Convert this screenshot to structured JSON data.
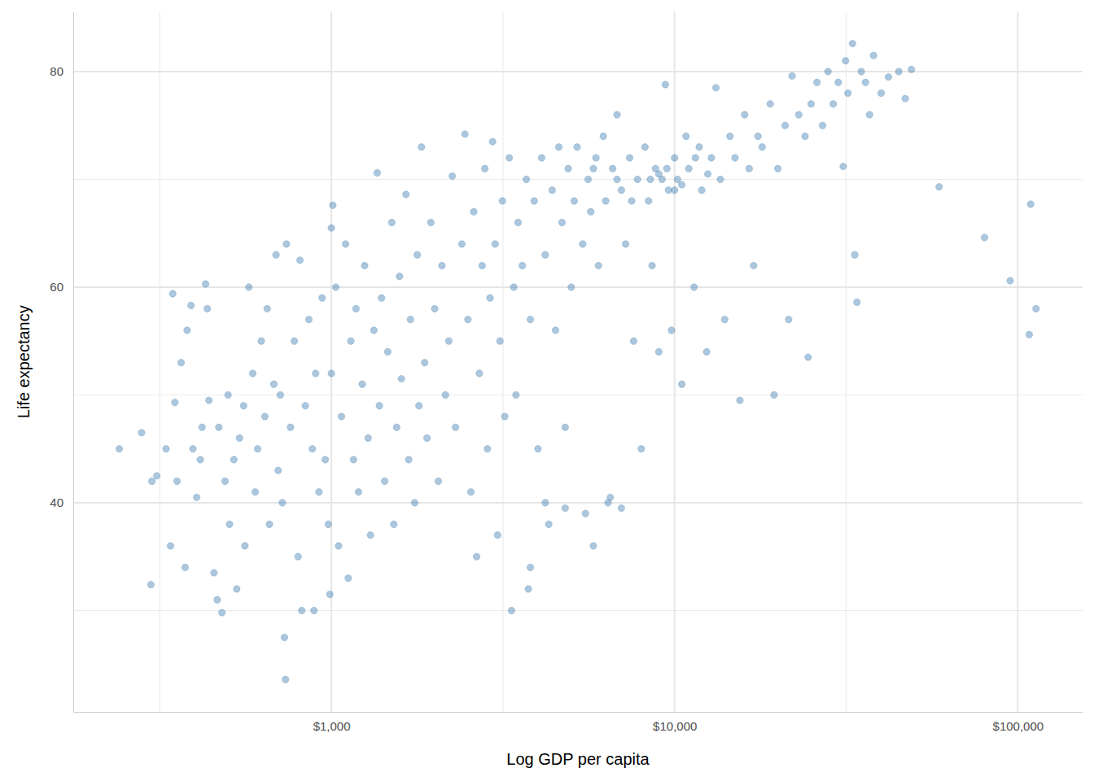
{
  "chart_data": {
    "type": "scatter",
    "x_label": "Log GDP per capita",
    "y_label": "Life expectancy",
    "color": "steelblue",
    "marker": "circle",
    "log": "x",
    "grid": true,
    "xlim": [
      177,
      154500
    ],
    "ylim": [
      20.6,
      85.55
    ],
    "xticks": [
      {
        "value": 1000,
        "label": "$1,000"
      },
      {
        "value": 10000,
        "label": "$10,000"
      },
      {
        "value": 100000,
        "label": "$100,000"
      }
    ],
    "yticks": [
      40,
      60,
      80
    ],
    "x": [
      241,
      280,
      298,
      300,
      310,
      330,
      340,
      345,
      350,
      355,
      365,
      375,
      380,
      390,
      395,
      405,
      415,
      420,
      430,
      435,
      440,
      455,
      465,
      470,
      480,
      490,
      500,
      505,
      520,
      530,
      540,
      555,
      560,
      575,
      590,
      600,
      610,
      625,
      640,
      650,
      660,
      680,
      690,
      700,
      710,
      720,
      730,
      735,
      740,
      760,
      780,
      800,
      810,
      820,
      840,
      860,
      880,
      890,
      900,
      920,
      940,
      960,
      980,
      1000,
      1000,
      990,
      1010,
      1030,
      1050,
      1070,
      1100,
      1120,
      1140,
      1160,
      1180,
      1200,
      1230,
      1250,
      1280,
      1300,
      1330,
      1360,
      1380,
      1400,
      1430,
      1460,
      1500,
      1520,
      1550,
      1580,
      1600,
      1650,
      1680,
      1700,
      1750,
      1780,
      1800,
      1830,
      1870,
      1900,
      1950,
      2000,
      2050,
      2100,
      2150,
      2200,
      2250,
      2300,
      2400,
      2450,
      2500,
      2550,
      2600,
      2650,
      2700,
      2750,
      2800,
      2850,
      2900,
      2950,
      3000,
      3050,
      3100,
      3150,
      3200,
      3300,
      3350,
      3400,
      3450,
      3500,
      3600,
      3700,
      3750,
      3800,
      3900,
      4000,
      4100,
      4200,
      4300,
      4400,
      4500,
      4600,
      4700,
      4800,
      4900,
      5000,
      5100,
      5200,
      5400,
      5500,
      5600,
      5700,
      5800,
      5900,
      6000,
      6200,
      6300,
      6400,
      6600,
      6800,
      7000,
      7200,
      7400,
      7600,
      7800,
      8000,
      8200,
      8400,
      8600,
      8800,
      9000,
      9200,
      9400,
      9600,
      9800,
      10000,
      10200,
      10500,
      10800,
      11000,
      11400,
      11800,
      12000,
      12400,
      12800,
      13200,
      13600,
      14000,
      14500,
      15000,
      15500,
      16000,
      16500,
      17000,
      17500,
      18000,
      19000,
      19500,
      20000,
      21000,
      21500,
      22000,
      23000,
      24000,
      24500,
      25000,
      26000,
      27000,
      28000,
      29000,
      30000,
      31000,
      31500,
      32000,
      33000,
      33500,
      34000,
      35000,
      36000,
      37000,
      38000,
      40000,
      42000,
      45000,
      47000,
      49000,
      59000,
      80000,
      95000,
      108000,
      109000,
      113000,
      3800,
      4200,
      4800,
      6500,
      7000,
      8500,
      9500,
      10500,
      11500,
      12500,
      7500,
      6800,
      5800,
      9000,
      10000
    ],
    "values": [
      45.0,
      46.5,
      32.4,
      42,
      42.5,
      45,
      36,
      59.4,
      49.3,
      42,
      53,
      34,
      56,
      58.3,
      45,
      40.5,
      44,
      47,
      60.3,
      58,
      49.5,
      33.5,
      31,
      47,
      29.8,
      42,
      50,
      38,
      44,
      32,
      46,
      49,
      36,
      60,
      52,
      41,
      45,
      55,
      48,
      58,
      38,
      51,
      63,
      43,
      50,
      40,
      27.5,
      23.6,
      64,
      47,
      55,
      35,
      62.5,
      30,
      49,
      57,
      45,
      30,
      52,
      41,
      59,
      44,
      38,
      65.5,
      52,
      31.5,
      67.6,
      60,
      36,
      48,
      64,
      33,
      55,
      44,
      58,
      41,
      51,
      62,
      46,
      37,
      56,
      70.6,
      49,
      59,
      42,
      54,
      66,
      38,
      47,
      61,
      51.5,
      68.6,
      44,
      57,
      40,
      63,
      49,
      73,
      53,
      46,
      66,
      58,
      42,
      62,
      50,
      55,
      70.3,
      47,
      64,
      74.2,
      57,
      41,
      67,
      35,
      52,
      62,
      71,
      45,
      59,
      73.5,
      64,
      37,
      55,
      68,
      48,
      72,
      30,
      60,
      50,
      66,
      62,
      70,
      32,
      57,
      68,
      45,
      72,
      63,
      38,
      69,
      56,
      73,
      66,
      47,
      71,
      60,
      68,
      73,
      64,
      39,
      70,
      67,
      36,
      72,
      62,
      74,
      68,
      40,
      71,
      76,
      69,
      64,
      72,
      55,
      70,
      45,
      73,
      68,
      62,
      71,
      54,
      70,
      78.8,
      69,
      56,
      72,
      70,
      51,
      74,
      71,
      60,
      73,
      69,
      54,
      72,
      78.5,
      70,
      57,
      74,
      72,
      49.5,
      76,
      71,
      62,
      74,
      73,
      77,
      50,
      71,
      75,
      57,
      79.6,
      76,
      74,
      53.5,
      77,
      79,
      75,
      80,
      77,
      79,
      71.2,
      81,
      78,
      82.6,
      63,
      58.6,
      80,
      79,
      76,
      81.5,
      78,
      79.5,
      80,
      77.5,
      80.2,
      69.3,
      64.6,
      60.6,
      55.6,
      67.7,
      58,
      34,
      40,
      39.5,
      40.5,
      39.5,
      70,
      71,
      69.5,
      72,
      70.5,
      68,
      70,
      71,
      70.5,
      69
    ]
  }
}
